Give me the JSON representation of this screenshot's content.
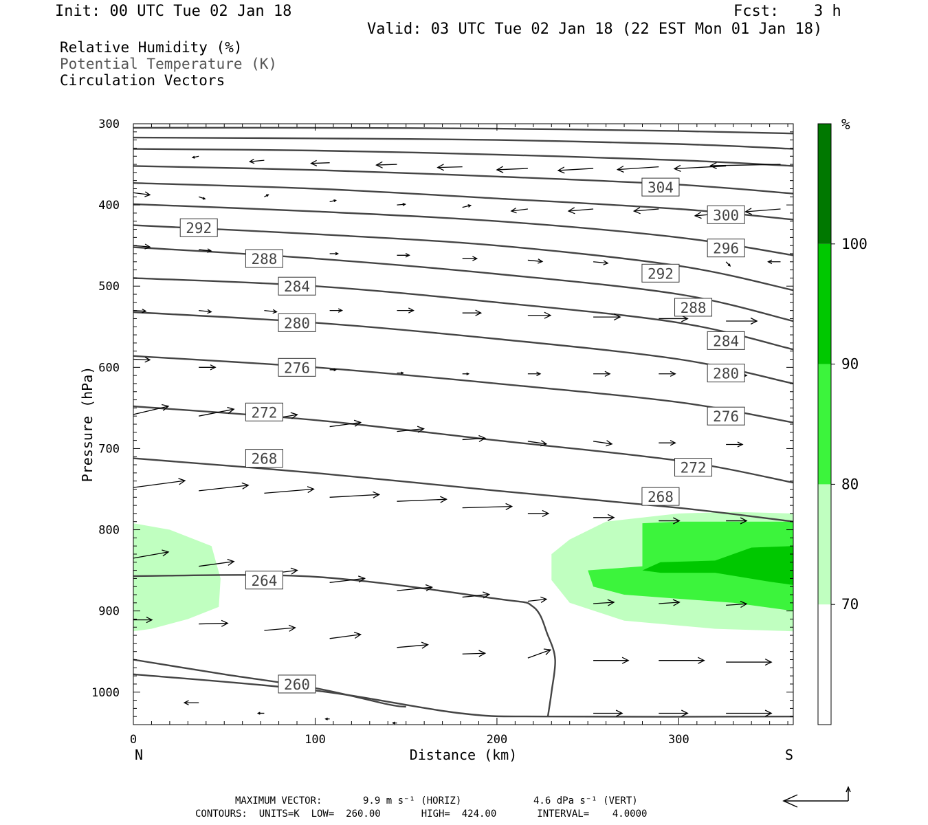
{
  "header": {
    "init": "Init: 00 UTC Tue 02 Jan 18",
    "fcst_label": "Fcst:",
    "fcst_value": "3 h",
    "valid": "Valid: 03 UTC Tue 02 Jan 18 (22 EST Mon 01 Jan 18)"
  },
  "legend": {
    "rh": "Relative Humidity (%)",
    "theta": "Potential Temperature (K)",
    "vectors": "Circulation Vectors"
  },
  "colorbar": {
    "unit": "%",
    "levels": [
      70,
      80,
      90,
      100
    ],
    "colors": [
      "#ffffff",
      "#c0ffc0",
      "#3cf43c",
      "#00c800",
      "#007800"
    ]
  },
  "footer": {
    "max_vector_label": "MAXIMUM VECTOR:",
    "horiz": "9.9 m s⁻¹ (HORIZ)",
    "vert": "4.6 dPa s⁻¹ (VERT)",
    "contours": "CONTOURS:  UNITS=K  LOW=  260.00       HIGH=  424.00       INTERVAL=    4.0000"
  },
  "chart_data": {
    "type": "cross-section",
    "xlabel": "Distance (km)",
    "ylabel": "Pressure (hPa)",
    "xlim": [
      0,
      363
    ],
    "ylim": [
      300,
      1040
    ],
    "x_ticks": [
      0,
      100,
      200,
      300
    ],
    "y_ticks": [
      300,
      400,
      500,
      600,
      700,
      800,
      900,
      1000
    ],
    "x_end_labels": {
      "left": "N",
      "right": "S"
    },
    "theta_contours": [
      {
        "value": 260,
        "label_at": [
          90,
          990
        ],
        "points": [
          [
            0,
            978
          ],
          [
            100,
            998
          ],
          [
            180,
            1026
          ],
          [
            230,
            1030
          ],
          [
            363,
            1030
          ]
        ]
      },
      {
        "value": 264,
        "label_at": [
          72,
          862
        ],
        "points": [
          [
            0,
            857
          ],
          [
            100,
            858
          ],
          [
            200,
            885
          ],
          [
            220,
            895
          ],
          [
            228,
            930
          ],
          [
            232,
            960
          ],
          [
            230,
            1000
          ],
          [
            228,
            1030
          ]
        ]
      },
      {
        "value": 268,
        "label_at": [
          72,
          712
        ],
        "points": [
          [
            0,
            712
          ],
          [
            100,
            730
          ],
          [
            200,
            752
          ],
          [
            300,
            773
          ],
          [
            363,
            790
          ]
        ]
      },
      {
        "value": 268,
        "label_at": [
          290,
          759
        ],
        "points": [
          [
            0,
            712
          ]
        ]
      },
      {
        "value": 272,
        "label_at": [
          72,
          655
        ],
        "points": [
          [
            0,
            648
          ],
          [
            100,
            665
          ],
          [
            200,
            690
          ],
          [
            300,
            715
          ],
          [
            363,
            742
          ]
        ]
      },
      {
        "value": 272,
        "label_at": [
          308,
          723
        ],
        "points": [
          [
            0,
            648
          ]
        ]
      },
      {
        "value": 276,
        "label_at": [
          90,
          600
        ],
        "points": [
          [
            0,
            586
          ],
          [
            100,
            600
          ],
          [
            200,
            620
          ],
          [
            300,
            643
          ],
          [
            363,
            668
          ]
        ]
      },
      {
        "value": 276,
        "label_at": [
          326,
          660
        ],
        "points": [
          [
            0,
            586
          ]
        ]
      },
      {
        "value": 280,
        "label_at": [
          90,
          545
        ],
        "points": [
          [
            0,
            532
          ],
          [
            100,
            545
          ],
          [
            200,
            565
          ],
          [
            300,
            590
          ],
          [
            363,
            620
          ]
        ]
      },
      {
        "value": 280,
        "label_at": [
          326,
          607
        ],
        "points": [
          [
            0,
            532
          ]
        ]
      },
      {
        "value": 284,
        "label_at": [
          90,
          500
        ],
        "points": [
          [
            0,
            490
          ],
          [
            100,
            500
          ],
          [
            200,
            520
          ],
          [
            300,
            545
          ],
          [
            363,
            578
          ]
        ]
      },
      {
        "value": 284,
        "label_at": [
          326,
          567
        ],
        "points": [
          [
            0,
            490
          ]
        ]
      },
      {
        "value": 288,
        "label_at": [
          72,
          466
        ],
        "points": [
          [
            0,
            452
          ],
          [
            100,
            466
          ],
          [
            200,
            485
          ],
          [
            300,
            510
          ],
          [
            363,
            543
          ]
        ]
      },
      {
        "value": 288,
        "label_at": [
          308,
          526
        ],
        "points": [
          [
            0,
            452
          ]
        ]
      },
      {
        "value": 292,
        "label_at": [
          36,
          428
        ],
        "points": [
          [
            0,
            425
          ],
          [
            100,
            436
          ],
          [
            200,
            450
          ],
          [
            300,
            475
          ],
          [
            363,
            505
          ]
        ]
      },
      {
        "value": 292,
        "label_at": [
          290,
          484
        ],
        "points": [
          [
            0,
            425
          ]
        ]
      },
      {
        "value": 296,
        "label_at": [
          326,
          453
        ],
        "points": [
          [
            0,
            399
          ],
          [
            100,
            408
          ],
          [
            200,
            420
          ],
          [
            300,
            440
          ],
          [
            363,
            462
          ]
        ]
      },
      {
        "value": 300,
        "label_at": [
          326,
          412
        ],
        "points": [
          [
            0,
            373
          ],
          [
            100,
            380
          ],
          [
            200,
            392
          ],
          [
            300,
            405
          ],
          [
            363,
            418
          ]
        ]
      },
      {
        "value": 304,
        "label_at": [
          290,
          378
        ],
        "points": [
          [
            0,
            352
          ],
          [
            100,
            357
          ],
          [
            200,
            365
          ],
          [
            300,
            375
          ],
          [
            363,
            386
          ]
        ]
      }
    ],
    "extra_contours": [
      [
        [
          0,
          331
        ],
        [
          100,
          333
        ],
        [
          200,
          338
        ],
        [
          300,
          345
        ],
        [
          363,
          352
        ]
      ],
      [
        [
          0,
          317
        ],
        [
          100,
          318
        ],
        [
          200,
          320
        ],
        [
          300,
          325
        ],
        [
          363,
          331
        ]
      ],
      [
        [
          0,
          305
        ],
        [
          100,
          305
        ],
        [
          200,
          306
        ],
        [
          300,
          309
        ],
        [
          363,
          312
        ]
      ],
      [
        [
          0,
          960
        ],
        [
          50,
          978
        ],
        [
          100,
          995
        ],
        [
          140,
          1015
        ],
        [
          150,
          1018
        ]
      ]
    ],
    "rh_regions": [
      {
        "level": 70,
        "points": [
          [
            0,
            792
          ],
          [
            20,
            800
          ],
          [
            43,
            820
          ],
          [
            48,
            860
          ],
          [
            47,
            895
          ],
          [
            30,
            910
          ],
          [
            10,
            922
          ],
          [
            0,
            925
          ]
        ]
      },
      {
        "level": 70,
        "points": [
          [
            363,
            780
          ],
          [
            330,
            778
          ],
          [
            300,
            780
          ],
          [
            260,
            790
          ],
          [
            240,
            812
          ],
          [
            230,
            830
          ],
          [
            230,
            862
          ],
          [
            240,
            890
          ],
          [
            270,
            912
          ],
          [
            320,
            922
          ],
          [
            363,
            925
          ]
        ]
      },
      {
        "level": 80,
        "points": [
          [
            363,
            790
          ],
          [
            330,
            790
          ],
          [
            300,
            790
          ],
          [
            280,
            792
          ],
          [
            280,
            845
          ],
          [
            250,
            850
          ],
          [
            253,
            870
          ],
          [
            270,
            880
          ],
          [
            330,
            890
          ],
          [
            363,
            900
          ]
        ]
      },
      {
        "level": 90,
        "points": [
          [
            363,
            820
          ],
          [
            340,
            822
          ],
          [
            320,
            838
          ],
          [
            290,
            840
          ],
          [
            280,
            850
          ],
          [
            290,
            853
          ],
          [
            320,
            853
          ],
          [
            350,
            864
          ],
          [
            363,
            868
          ]
        ]
      }
    ],
    "vectors": [
      {
        "x": 0,
        "p": 658,
        "u": 17,
        "w": -12
      },
      {
        "x": 36,
        "p": 660,
        "u": 17,
        "w": -10
      },
      {
        "x": 72,
        "p": 665,
        "u": 16,
        "w": -8
      },
      {
        "x": 108,
        "p": 673,
        "u": 15,
        "w": -6
      },
      {
        "x": 145,
        "p": 679,
        "u": 13,
        "w": -4
      },
      {
        "x": 181,
        "p": 689,
        "u": 11,
        "w": -2
      },
      {
        "x": 217,
        "p": 691,
        "u": 9,
        "w": 4
      },
      {
        "x": 253,
        "p": 691,
        "u": 9,
        "w": 4
      },
      {
        "x": 289,
        "p": 693,
        "u": 8,
        "w": 0
      },
      {
        "x": 326,
        "p": 695,
        "u": 8,
        "w": 0
      },
      {
        "x": 0,
        "p": 748,
        "u": 25,
        "w": -10
      },
      {
        "x": 36,
        "p": 752,
        "u": 24,
        "w": -8
      },
      {
        "x": 72,
        "p": 755,
        "u": 24,
        "w": -6
      },
      {
        "x": 108,
        "p": 760,
        "u": 24,
        "w": -4
      },
      {
        "x": 145,
        "p": 765,
        "u": 24,
        "w": -3
      },
      {
        "x": 181,
        "p": 773,
        "u": 24,
        "w": -2
      },
      {
        "x": 217,
        "p": 780,
        "u": 10,
        "w": 0
      },
      {
        "x": 253,
        "p": 785,
        "u": 10,
        "w": 0
      },
      {
        "x": 289,
        "p": 789,
        "u": 10,
        "w": 0
      },
      {
        "x": 326,
        "p": 789,
        "u": 10,
        "w": 0
      },
      {
        "x": 0,
        "p": 835,
        "u": 17,
        "w": -9
      },
      {
        "x": 36,
        "p": 845,
        "u": 17,
        "w": -7
      },
      {
        "x": 72,
        "p": 855,
        "u": 16,
        "w": -6
      },
      {
        "x": 108,
        "p": 865,
        "u": 17,
        "w": -6
      },
      {
        "x": 145,
        "p": 875,
        "u": 17,
        "w": -5
      },
      {
        "x": 181,
        "p": 883,
        "u": 13,
        "w": -4
      },
      {
        "x": 217,
        "p": 888,
        "u": 9,
        "w": -3
      },
      {
        "x": 253,
        "p": 891,
        "u": 10,
        "w": -2
      },
      {
        "x": 289,
        "p": 891,
        "u": 10,
        "w": -2
      },
      {
        "x": 326,
        "p": 893,
        "u": 10,
        "w": -2
      },
      {
        "x": 0,
        "p": 911,
        "u": 9,
        "w": 0
      },
      {
        "x": 36,
        "p": 916,
        "u": 14,
        "w": -1
      },
      {
        "x": 72,
        "p": 924,
        "u": 15,
        "w": -4
      },
      {
        "x": 108,
        "p": 934,
        "u": 15,
        "w": -6
      },
      {
        "x": 145,
        "p": 945,
        "u": 15,
        "w": -4
      },
      {
        "x": 181,
        "p": 953,
        "u": 11,
        "w": -1
      },
      {
        "x": 217,
        "p": 958,
        "u": 11,
        "w": -12
      },
      {
        "x": 253,
        "p": 961,
        "u": 17,
        "w": 0
      },
      {
        "x": 289,
        "p": 961,
        "u": 22,
        "w": 0
      },
      {
        "x": 326,
        "p": 963,
        "u": 22,
        "w": 0
      },
      {
        "x": 36,
        "p": 1013,
        "u": -7,
        "w": 0
      },
      {
        "x": 72,
        "p": 1026,
        "u": -3,
        "w": 0
      },
      {
        "x": 108,
        "p": 1033,
        "u": -2,
        "w": 0
      },
      {
        "x": 145,
        "p": 1038,
        "u": -2,
        "w": 0
      },
      {
        "x": 253,
        "p": 1026,
        "u": 14,
        "w": 0
      },
      {
        "x": 289,
        "p": 1026,
        "u": 14,
        "w": 0
      },
      {
        "x": 326,
        "p": 1026,
        "u": 22,
        "w": 0
      },
      {
        "x": 0,
        "p": 590,
        "u": 8,
        "w": 1
      },
      {
        "x": 36,
        "p": 600,
        "u": 8,
        "w": 0
      },
      {
        "x": 108,
        "p": 603,
        "u": 3,
        "w": 0
      },
      {
        "x": 145,
        "p": 607,
        "u": 3,
        "w": 0
      },
      {
        "x": 181,
        "p": 608,
        "u": 3,
        "w": 0
      },
      {
        "x": 217,
        "p": 608,
        "u": 6,
        "w": 0
      },
      {
        "x": 253,
        "p": 608,
        "u": 8,
        "w": 0
      },
      {
        "x": 289,
        "p": 608,
        "u": 8,
        "w": 0
      },
      {
        "x": 326,
        "p": 610,
        "u": 10,
        "w": 0
      },
      {
        "x": 0,
        "p": 530,
        "u": 6,
        "w": 1
      },
      {
        "x": 36,
        "p": 530,
        "u": 6,
        "w": 2
      },
      {
        "x": 72,
        "p": 530,
        "u": 6,
        "w": 2
      },
      {
        "x": 108,
        "p": 530,
        "u": 6,
        "w": 0
      },
      {
        "x": 145,
        "p": 530,
        "u": 8,
        "w": 0
      },
      {
        "x": 181,
        "p": 533,
        "u": 9,
        "w": 0
      },
      {
        "x": 217,
        "p": 536,
        "u": 11,
        "w": 0
      },
      {
        "x": 253,
        "p": 538,
        "u": 13,
        "w": 0
      },
      {
        "x": 289,
        "p": 540,
        "u": 14,
        "w": 0
      },
      {
        "x": 326,
        "p": 543,
        "u": 15,
        "w": 0
      },
      {
        "x": 0,
        "p": 450,
        "u": 8,
        "w": 2
      },
      {
        "x": 36,
        "p": 455,
        "u": 6,
        "w": 2
      },
      {
        "x": 108,
        "p": 460,
        "u": 4,
        "w": 0
      },
      {
        "x": 145,
        "p": 462,
        "u": 6,
        "w": 0
      },
      {
        "x": 181,
        "p": 466,
        "u": 7,
        "w": 0
      },
      {
        "x": 217,
        "p": 468,
        "u": 7,
        "w": 2
      },
      {
        "x": 253,
        "p": 470,
        "u": 7,
        "w": 2
      },
      {
        "x": 326,
        "p": 470,
        "u": 2,
        "w": 6
      },
      {
        "x": 356,
        "p": 470,
        "u": -6,
        "w": 0
      },
      {
        "x": 0,
        "p": 385,
        "u": 8,
        "w": 3
      },
      {
        "x": 36,
        "p": 390,
        "u": 3,
        "w": 3
      },
      {
        "x": 72,
        "p": 390,
        "u": 2,
        "w": -3
      },
      {
        "x": 108,
        "p": 396,
        "u": 3,
        "w": -2
      },
      {
        "x": 145,
        "p": 400,
        "u": 4,
        "w": -1
      },
      {
        "x": 181,
        "p": 403,
        "u": 4,
        "w": -3
      },
      {
        "x": 217,
        "p": 405,
        "u": -8,
        "w": 3
      },
      {
        "x": 253,
        "p": 405,
        "u": -12,
        "w": 3
      },
      {
        "x": 289,
        "p": 405,
        "u": -12,
        "w": 3
      },
      {
        "x": 326,
        "p": 410,
        "u": -15,
        "w": 4
      },
      {
        "x": 356,
        "p": 405,
        "u": -17,
        "w": 4
      },
      {
        "x": 36,
        "p": 340,
        "u": -3,
        "w": 2
      },
      {
        "x": 72,
        "p": 345,
        "u": -7,
        "w": 2
      },
      {
        "x": 108,
        "p": 348,
        "u": -9,
        "w": 1
      },
      {
        "x": 145,
        "p": 350,
        "u": -10,
        "w": 1
      },
      {
        "x": 181,
        "p": 353,
        "u": -12,
        "w": 1
      },
      {
        "x": 217,
        "p": 355,
        "u": -15,
        "w": 2
      },
      {
        "x": 253,
        "p": 355,
        "u": -17,
        "w": 3
      },
      {
        "x": 289,
        "p": 353,
        "u": -20,
        "w": 4
      },
      {
        "x": 326,
        "p": 352,
        "u": -25,
        "w": 4
      },
      {
        "x": 356,
        "p": 350,
        "u": -34,
        "w": 2
      }
    ]
  }
}
